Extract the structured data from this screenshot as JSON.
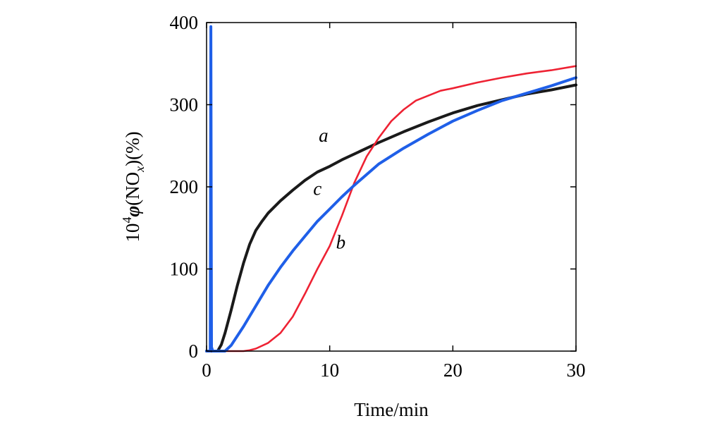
{
  "chart_data": {
    "type": "line",
    "xlabel": "Time/min",
    "ylabel_parts": {
      "base": "10",
      "sup": "4",
      "phi": "φ",
      "open": "(NO",
      "sub": "x",
      "close": ")(%)"
    },
    "xlim": [
      0,
      30
    ],
    "ylim": [
      0,
      400
    ],
    "x_ticks": [
      0,
      10,
      20,
      30
    ],
    "y_ticks": [
      0,
      100,
      200,
      300,
      400
    ],
    "grid": false,
    "legend": "none",
    "series": [
      {
        "label": "a",
        "color": "#1a1a1a",
        "x": [
          0,
          0.5,
          0.9,
          1.2,
          1.5,
          2,
          2.5,
          3,
          3.5,
          4,
          4.5,
          5,
          6,
          7,
          8,
          9,
          10,
          11,
          12,
          14,
          16,
          18,
          20,
          22,
          24,
          26,
          28,
          30
        ],
        "y": [
          0,
          0,
          0,
          8,
          22,
          50,
          80,
          107,
          130,
          147,
          158,
          168,
          183,
          196,
          208,
          218,
          225,
          233,
          240,
          254,
          267,
          279,
          290,
          299,
          306,
          313,
          318,
          324
        ]
      },
      {
        "label": "b",
        "color": "#ee2233",
        "x": [
          0,
          2,
          3,
          3.5,
          4,
          5,
          6,
          7,
          8,
          9,
          10,
          11,
          12,
          13,
          14,
          15,
          16,
          17,
          18,
          19,
          20,
          22,
          24,
          26,
          28,
          30
        ],
        "y": [
          0,
          0,
          0,
          1,
          3,
          10,
          22,
          42,
          70,
          100,
          128,
          165,
          205,
          237,
          260,
          280,
          294,
          305,
          311,
          317,
          320,
          327,
          333,
          338,
          342,
          347
        ]
      },
      {
        "label": "c",
        "color": "#1f5fe8",
        "x": [
          0,
          0.3,
          0.35,
          0.4,
          0.5,
          1,
          1.5,
          2,
          3,
          4,
          5,
          6,
          7,
          8,
          9,
          10,
          11,
          12,
          13,
          14,
          16,
          18,
          20,
          22,
          24,
          26,
          28,
          30
        ],
        "y": [
          0,
          0,
          395,
          5,
          0,
          0,
          0,
          7,
          30,
          55,
          80,
          102,
          122,
          140,
          158,
          173,
          188,
          202,
          215,
          228,
          247,
          264,
          280,
          293,
          305,
          314,
          323,
          333
        ]
      }
    ],
    "annotations": [
      {
        "text": "a",
        "x": 9.5,
        "y": 255
      },
      {
        "text": "c",
        "x": 9.0,
        "y": 190
      },
      {
        "text": "b",
        "x": 10.9,
        "y": 125
      }
    ]
  }
}
